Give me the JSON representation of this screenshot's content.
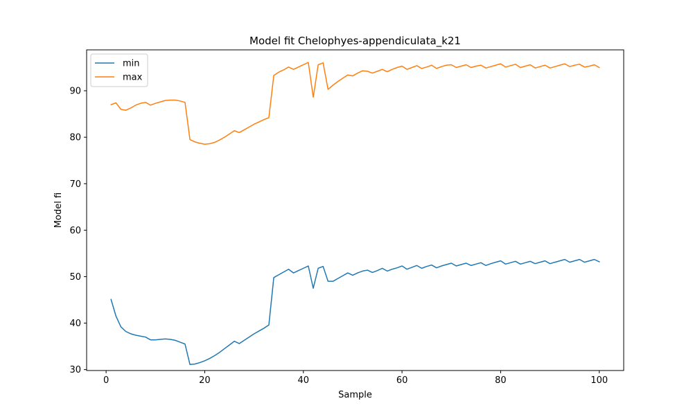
{
  "chart_data": {
    "type": "line",
    "title": "Model fit Chelophyes-appendiculata_k21",
    "xlabel": "Sample",
    "ylabel": "Model fi",
    "xlim": [
      -3.95,
      104.95
    ],
    "ylim": [
      29.8,
      98.8
    ],
    "xticks": [
      0,
      20,
      40,
      60,
      80,
      100
    ],
    "yticks": [
      30,
      40,
      50,
      60,
      70,
      80,
      90
    ],
    "grid": false,
    "legend_position": "top-left",
    "x": [
      1,
      2,
      3,
      4,
      5,
      6,
      7,
      8,
      9,
      10,
      11,
      12,
      13,
      14,
      15,
      16,
      17,
      18,
      19,
      20,
      21,
      22,
      23,
      24,
      25,
      26,
      27,
      28,
      29,
      30,
      31,
      32,
      33,
      34,
      35,
      36,
      37,
      38,
      39,
      40,
      41,
      42,
      43,
      44,
      45,
      46,
      47,
      48,
      49,
      50,
      51,
      52,
      53,
      54,
      55,
      56,
      57,
      58,
      59,
      60,
      61,
      62,
      63,
      64,
      65,
      66,
      67,
      68,
      69,
      70,
      71,
      72,
      73,
      74,
      75,
      76,
      77,
      78,
      79,
      80,
      81,
      82,
      83,
      84,
      85,
      86,
      87,
      88,
      89,
      90,
      91,
      92,
      93,
      94,
      95,
      96,
      97,
      98,
      99,
      100
    ],
    "series": [
      {
        "name": "min",
        "color": "#1f77b4",
        "values": [
          45.1,
          41.5,
          39.2,
          38.2,
          37.7,
          37.4,
          37.2,
          37.0,
          36.4,
          36.4,
          36.5,
          36.6,
          36.5,
          36.3,
          35.9,
          35.5,
          31.1,
          31.2,
          31.5,
          31.9,
          32.4,
          33.0,
          33.7,
          34.5,
          35.3,
          36.1,
          35.6,
          36.3,
          37.0,
          37.7,
          38.3,
          38.9,
          39.6,
          49.8,
          50.4,
          51.0,
          51.6,
          50.8,
          51.3,
          51.8,
          52.3,
          47.5,
          51.8,
          52.2,
          49.0,
          49.0,
          49.6,
          50.2,
          50.8,
          50.3,
          50.8,
          51.2,
          51.4,
          50.9,
          51.3,
          51.8,
          51.2,
          51.6,
          51.9,
          52.3,
          51.6,
          52.0,
          52.4,
          51.8,
          52.2,
          52.5,
          51.9,
          52.3,
          52.6,
          52.9,
          52.3,
          52.6,
          52.9,
          52.4,
          52.7,
          53.0,
          52.4,
          52.8,
          53.1,
          53.4,
          52.7,
          53.0,
          53.3,
          52.7,
          53.0,
          53.3,
          52.8,
          53.1,
          53.4,
          52.8,
          53.1,
          53.4,
          53.7,
          53.1,
          53.4,
          53.7,
          53.1,
          53.4,
          53.7,
          53.2
        ]
      },
      {
        "name": "max",
        "color": "#ff7f0e",
        "values": [
          87.0,
          87.4,
          86.0,
          85.8,
          86.3,
          86.9,
          87.3,
          87.5,
          86.9,
          87.3,
          87.6,
          87.9,
          88.0,
          88.0,
          87.8,
          87.5,
          79.5,
          79.0,
          78.7,
          78.5,
          78.6,
          78.9,
          79.4,
          80.0,
          80.7,
          81.4,
          81.0,
          81.6,
          82.2,
          82.8,
          83.3,
          83.8,
          84.2,
          93.3,
          94.0,
          94.5,
          95.1,
          94.6,
          95.1,
          95.6,
          96.1,
          88.6,
          95.6,
          96.0,
          90.3,
          91.2,
          92.0,
          92.7,
          93.4,
          93.2,
          93.8,
          94.3,
          94.2,
          93.8,
          94.2,
          94.6,
          94.1,
          94.6,
          95.0,
          95.3,
          94.6,
          95.0,
          95.4,
          94.8,
          95.1,
          95.5,
          94.8,
          95.2,
          95.5,
          95.6,
          95.0,
          95.3,
          95.6,
          95.0,
          95.3,
          95.5,
          94.9,
          95.2,
          95.5,
          95.8,
          95.1,
          95.4,
          95.7,
          95.0,
          95.3,
          95.6,
          94.9,
          95.2,
          95.5,
          94.9,
          95.2,
          95.5,
          95.8,
          95.2,
          95.5,
          95.7,
          95.1,
          95.3,
          95.6,
          95.0
        ]
      }
    ]
  }
}
